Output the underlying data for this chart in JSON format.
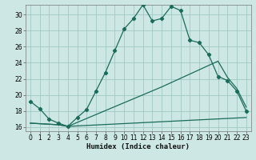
{
  "xlabel": "Humidex (Indice chaleur)",
  "bg_color": "#cde8e4",
  "grid_color": "#a0c8c4",
  "line_color": "#1a6b5a",
  "xlim": [
    -0.5,
    23.5
  ],
  "ylim": [
    15.5,
    31.2
  ],
  "xticks": [
    0,
    1,
    2,
    3,
    4,
    5,
    6,
    7,
    8,
    9,
    10,
    11,
    12,
    13,
    14,
    15,
    16,
    17,
    18,
    19,
    20,
    21,
    22,
    23
  ],
  "yticks": [
    16,
    18,
    20,
    22,
    24,
    26,
    28,
    30
  ],
  "curve1_x": [
    0,
    1,
    2,
    3,
    4,
    5,
    6,
    7,
    8,
    9,
    10,
    11,
    12,
    13,
    14,
    15,
    16,
    17,
    18,
    19,
    20,
    21,
    22,
    23
  ],
  "curve1_y": [
    19.2,
    18.3,
    17.0,
    16.5,
    16.1,
    17.2,
    18.2,
    20.5,
    22.8,
    25.5,
    28.2,
    29.5,
    31.2,
    29.2,
    29.5,
    31.0,
    30.5,
    26.8,
    26.5,
    25.0,
    22.3,
    21.8,
    20.5,
    18.0
  ],
  "curve2_x": [
    0,
    3,
    4,
    23
  ],
  "curve2_y": [
    16.5,
    16.3,
    16.1,
    17.2
  ],
  "curve3_x": [
    0,
    3,
    4,
    14,
    20,
    21,
    22,
    23
  ],
  "curve3_y": [
    16.5,
    16.3,
    16.1,
    21.0,
    24.2,
    22.2,
    20.8,
    18.5
  ],
  "markers_x": [
    0,
    1,
    2,
    3,
    4,
    5,
    6,
    7,
    8,
    9,
    10,
    11,
    12,
    13,
    14,
    15,
    16,
    17,
    18,
    19,
    20,
    21,
    22,
    23
  ],
  "markers_y": [
    19.2,
    18.3,
    17.0,
    16.5,
    16.1,
    17.2,
    18.2,
    20.5,
    22.8,
    25.5,
    28.2,
    29.5,
    31.2,
    29.2,
    29.5,
    31.0,
    30.5,
    26.8,
    26.5,
    25.0,
    22.3,
    21.8,
    20.5,
    18.0
  ],
  "xlabel_fontsize": 6.5,
  "tick_fontsize": 5.5
}
